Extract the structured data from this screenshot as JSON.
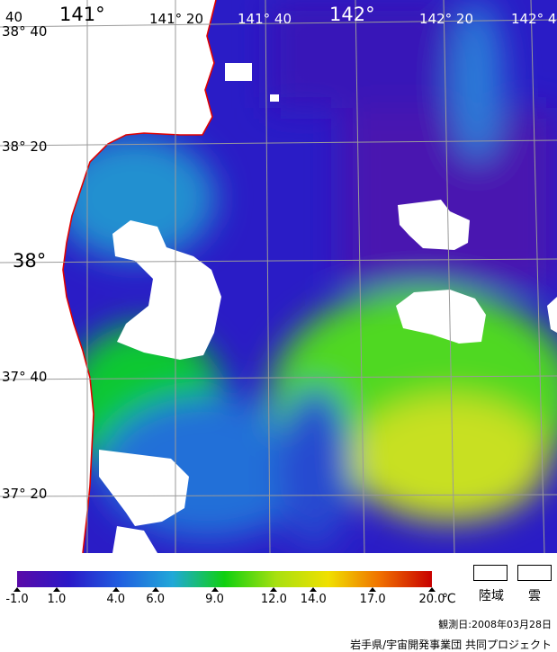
{
  "map": {
    "lon_labels_top": [
      "40",
      "141°",
      "141° 20",
      "141° 40",
      "142°",
      "142° 20",
      "142° 4"
    ],
    "lat_labels_left": [
      "38° 40",
      "38° 20",
      "38°",
      "37° 40",
      "37° 20"
    ]
  },
  "legend": {
    "ticks": [
      "-1.0",
      "1.0",
      "4.0",
      "6.0",
      "9.0",
      "12.0",
      "14.0",
      "17.0",
      "20.0"
    ],
    "tick_values": [
      -1,
      1,
      4,
      6,
      9,
      12,
      14,
      17,
      20
    ],
    "range": [
      -1,
      20
    ],
    "unit": "℃",
    "land_label": "陸域",
    "cloud_label": "雲",
    "colors": [
      "#5a0aa8",
      "#2a18c8",
      "#2060e0",
      "#20a8d8",
      "#10d010",
      "#a8e010",
      "#f0e000",
      "#f07000",
      "#c80000"
    ]
  },
  "footer": {
    "observation_date": "観測日:2008年03月28日",
    "credit": "岩手県/宇宙開発事業団 共同プロジェクト"
  }
}
